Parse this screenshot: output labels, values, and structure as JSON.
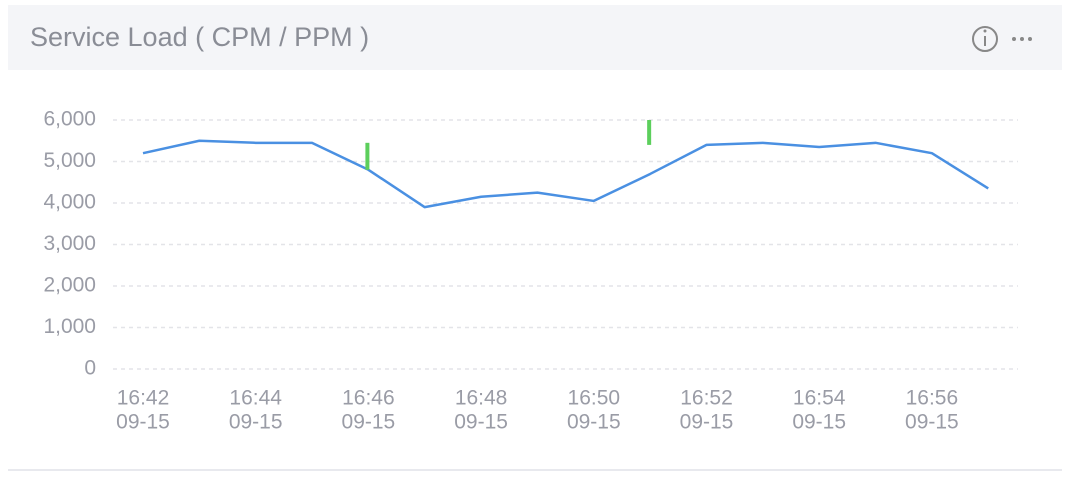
{
  "chart_data": {
    "type": "line",
    "title": "Service Load ( CPM / PPM )",
    "categories": [
      [
        "16:42",
        "09-15"
      ],
      null,
      [
        "16:44",
        "09-15"
      ],
      null,
      [
        "16:46",
        "09-15"
      ],
      null,
      [
        "16:48",
        "09-15"
      ],
      null,
      [
        "16:50",
        "09-15"
      ],
      null,
      [
        "16:52",
        "09-15"
      ],
      null,
      [
        "16:54",
        "09-15"
      ],
      null,
      [
        "16:56",
        "09-15"
      ],
      null
    ],
    "series": [
      {
        "color": "#4a90e2",
        "values": [
          5200,
          5500,
          5450,
          5450,
          4800,
          3900,
          4150,
          4250,
          4050,
          4700,
          5400,
          5450,
          5350,
          5450,
          5200,
          4350
        ]
      }
    ],
    "markers": [
      {
        "category": 4,
        "from": 4800,
        "to": 5450,
        "color": "#5ccf5c"
      },
      {
        "category": 9,
        "from": 5400,
        "to": 6000,
        "color": "#5ccf5c"
      }
    ],
    "ylim": [
      0,
      6000
    ],
    "yticks": [
      0,
      {
        "value": 1000,
        "label": "1,000"
      },
      {
        "value": 2000,
        "label": "2,000"
      },
      {
        "value": 3000,
        "label": "3,000"
      },
      {
        "value": 4000,
        "label": "4,000"
      },
      {
        "value": 5000,
        "label": "5,000"
      },
      {
        "value": 6000,
        "label": "6,000"
      }
    ],
    "grid": true
  }
}
